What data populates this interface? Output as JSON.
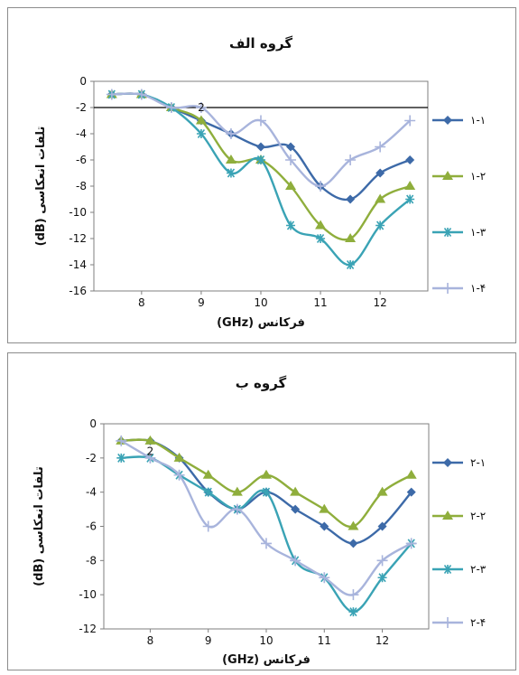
{
  "chart_data": [
    {
      "type": "line",
      "title": "گروه الف",
      "xlabel": "فرکانس (GHz)",
      "ylabel": "تلفات انعکاسی (dB)",
      "xlim": [
        7.2,
        12.8
      ],
      "ylim": [
        -16,
        0
      ],
      "xticks": [
        "8",
        "9",
        "10",
        "11",
        "12"
      ],
      "yticks": [
        "0",
        "-2",
        "-4",
        "-6",
        "-8",
        "-10",
        "-12",
        "-14",
        "-16"
      ],
      "reference_line_y": -2,
      "annotation": {
        "text": "2",
        "x": 9.0,
        "y": -2
      },
      "legend_position": "right",
      "x": [
        7.5,
        8,
        8.5,
        9,
        9.5,
        10,
        10.5,
        11,
        11.5,
        12,
        12.5
      ],
      "series": [
        {
          "name": "۱-۱",
          "color": "#3d6aa8",
          "marker": "diamond",
          "values": [
            -1,
            -1,
            -2,
            -3,
            -4,
            -5,
            -5,
            -8,
            -9,
            -7,
            -6
          ]
        },
        {
          "name": "۱-۲",
          "color": "#8fae3c",
          "marker": "triangle",
          "values": [
            -1,
            -1,
            -2,
            -3,
            -6,
            -6,
            -8,
            -11,
            -12,
            -9,
            -8
          ]
        },
        {
          "name": "۱-۳",
          "color": "#3aa3b5",
          "marker": "star",
          "values": [
            -1,
            -1,
            -2,
            -4,
            -7,
            -6,
            -11,
            -12,
            -14,
            -11,
            -9
          ]
        },
        {
          "name": "۱-۴",
          "color": "#a8b4dc",
          "marker": "plus",
          "values": [
            -1,
            -1,
            -2,
            -2,
            -4,
            -3,
            -6,
            -8,
            -6,
            -5,
            -3
          ]
        }
      ]
    },
    {
      "type": "line",
      "title": "گروه ب",
      "xlabel": "فرکانس (GHz)",
      "ylabel": "تلفات انعکاسی (dB)",
      "xlim": [
        7.2,
        12.8
      ],
      "ylim": [
        -12,
        0
      ],
      "xticks": [
        "8",
        "9",
        "10",
        "11",
        "12"
      ],
      "yticks": [
        "0",
        "-2",
        "-4",
        "-6",
        "-8",
        "-10",
        "-12"
      ],
      "annotation": {
        "text": "2",
        "x": 8.0,
        "y": -1.6
      },
      "legend_position": "right",
      "x": [
        7.5,
        8,
        8.5,
        9,
        9.5,
        10,
        10.5,
        11,
        11.5,
        12,
        12.5
      ],
      "series": [
        {
          "name": "۲-۱",
          "color": "#3d6aa8",
          "marker": "diamond",
          "values": [
            -1,
            -1,
            -2,
            -4,
            -5,
            -4,
            -5,
            -6,
            -7,
            -6,
            -4
          ]
        },
        {
          "name": "۲-۲",
          "color": "#8fae3c",
          "marker": "triangle",
          "values": [
            -1,
            -1,
            -2,
            -3,
            -4,
            -3,
            -4,
            -5,
            -6,
            -4,
            -3
          ]
        },
        {
          "name": "۲-۳",
          "color": "#3aa3b5",
          "marker": "star",
          "values": [
            -2,
            -2,
            -3,
            -4,
            -5,
            -4,
            -8,
            -9,
            -11,
            -9,
            -7
          ]
        },
        {
          "name": "۲-۴",
          "color": "#a8b4dc",
          "marker": "plus",
          "values": [
            -1,
            -2,
            -3,
            -6,
            -5,
            -7,
            -8,
            -9,
            -10,
            -8,
            -7
          ]
        }
      ]
    }
  ]
}
